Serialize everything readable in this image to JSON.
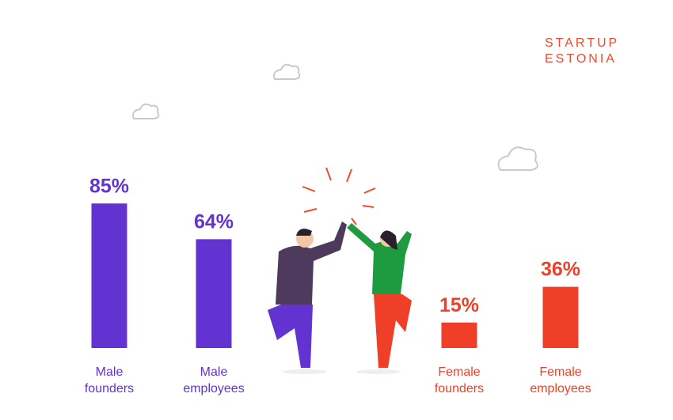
{
  "chart_data": {
    "type": "bar",
    "categories": [
      "Male founders",
      "Male employees",
      "Female founders",
      "Female employees"
    ],
    "values": [
      85,
      64,
      15,
      36
    ],
    "value_labels": [
      "85%",
      "64%",
      "15%",
      "36%"
    ],
    "colors": [
      "#6233d0",
      "#6233d0",
      "#f03f28",
      "#f03f28"
    ],
    "ylim": [
      0,
      100
    ]
  },
  "logo": {
    "line1": "STARTUP",
    "line2": "ESTONIA"
  }
}
